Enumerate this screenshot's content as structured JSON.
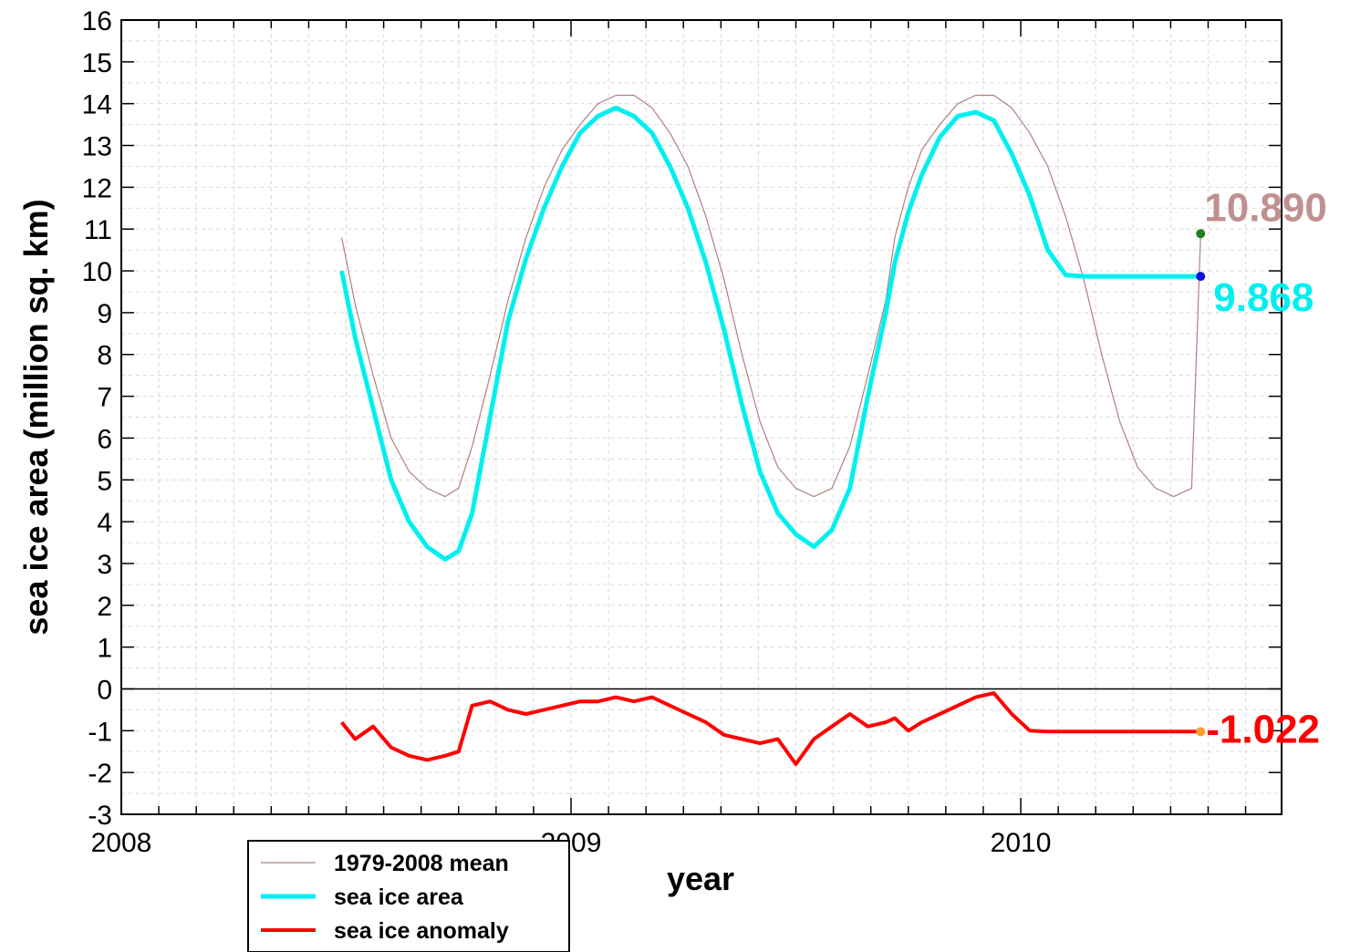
{
  "chart_data": {
    "type": "line",
    "xlabel": "year",
    "ylabel": "sea ice area (million sq. km)",
    "xlim": [
      2008.0,
      2010.58
    ],
    "ylim": [
      -3,
      16
    ],
    "x_ticks": [
      2008,
      2009,
      2010
    ],
    "y_ticks": [
      -3,
      -2,
      -1,
      0,
      1,
      2,
      3,
      4,
      5,
      6,
      7,
      8,
      9,
      10,
      11,
      12,
      13,
      14,
      15,
      16
    ],
    "grid": true,
    "legend_position": "bottom-left",
    "colors": {
      "mean": "#b08080",
      "area": "#00f0f0",
      "anomaly": "#ff0000",
      "mean_end_marker": "#208020",
      "area_end_marker": "#1010e0",
      "anomaly_end_marker": "#ffa030",
      "mean_end_label": "#c09090",
      "area_end_label": "#00f0f0",
      "anomaly_end_label": "#ff0000"
    },
    "series": [
      {
        "name": "1979-2008 mean",
        "x": [
          2008.49,
          2008.52,
          2008.56,
          2008.6,
          2008.64,
          2008.68,
          2008.72,
          2008.75,
          2008.78,
          2008.82,
          2008.86,
          2008.9,
          2008.94,
          2008.98,
          2009.02,
          2009.06,
          2009.1,
          2009.14,
          2009.18,
          2009.22,
          2009.26,
          2009.3,
          2009.34,
          2009.38,
          2009.42,
          2009.46,
          2009.5,
          2009.54,
          2009.58,
          2009.62,
          2009.66,
          2009.7,
          2009.72,
          2009.75,
          2009.78,
          2009.82,
          2009.86,
          2009.9,
          2009.94,
          2009.98,
          2010.02,
          2010.06,
          2010.1,
          2010.14,
          2010.18,
          2010.22,
          2010.26,
          2010.3,
          2010.34,
          2010.38,
          2010.4
        ],
        "values": [
          10.8,
          9.2,
          7.5,
          6.0,
          5.2,
          4.8,
          4.6,
          4.8,
          5.8,
          7.5,
          9.3,
          10.8,
          12.0,
          12.9,
          13.5,
          14.0,
          14.2,
          14.2,
          13.9,
          13.3,
          12.5,
          11.3,
          9.8,
          8.0,
          6.4,
          5.3,
          4.8,
          4.6,
          4.8,
          5.8,
          7.5,
          9.3,
          10.8,
          12.0,
          12.9,
          13.5,
          14.0,
          14.2,
          14.2,
          13.9,
          13.3,
          12.5,
          11.3,
          9.8,
          8.0,
          6.4,
          5.3,
          4.8,
          4.6,
          4.8,
          10.89
        ],
        "end_value": "10.890"
      },
      {
        "name": "sea ice area",
        "x": [
          2008.49,
          2008.52,
          2008.56,
          2008.6,
          2008.64,
          2008.68,
          2008.72,
          2008.75,
          2008.78,
          2008.82,
          2008.86,
          2008.9,
          2008.94,
          2008.98,
          2009.02,
          2009.06,
          2009.1,
          2009.14,
          2009.18,
          2009.22,
          2009.26,
          2009.3,
          2009.34,
          2009.38,
          2009.42,
          2009.46,
          2009.5,
          2009.54,
          2009.58,
          2009.62,
          2009.66,
          2009.7,
          2009.72,
          2009.75,
          2009.78,
          2009.82,
          2009.86,
          2009.9,
          2009.94,
          2009.98,
          2010.02,
          2010.06,
          2010.1,
          2010.14,
          2010.18,
          2010.22,
          2010.26,
          2010.3,
          2010.34,
          2010.38,
          2010.4
        ],
        "values": [
          10.0,
          8.4,
          6.7,
          5.0,
          4.0,
          3.4,
          3.1,
          3.3,
          4.2,
          6.5,
          8.8,
          10.3,
          11.5,
          12.5,
          13.3,
          13.7,
          13.9,
          13.7,
          13.3,
          12.5,
          11.5,
          10.2,
          8.6,
          6.8,
          5.2,
          4.2,
          3.7,
          3.4,
          3.8,
          4.8,
          7.0,
          9.0,
          10.2,
          11.4,
          12.3,
          13.2,
          13.7,
          13.8,
          13.6,
          12.8,
          11.8,
          10.5,
          9.9,
          9.87,
          9.868,
          9.868,
          9.868,
          9.868,
          9.868,
          9.868,
          9.868
        ],
        "end_value": "9.868"
      },
      {
        "name": "sea ice anomaly",
        "x": [
          2008.49,
          2008.52,
          2008.56,
          2008.6,
          2008.64,
          2008.68,
          2008.72,
          2008.75,
          2008.78,
          2008.82,
          2008.86,
          2008.9,
          2008.94,
          2008.98,
          2009.02,
          2009.06,
          2009.1,
          2009.14,
          2009.18,
          2009.22,
          2009.26,
          2009.3,
          2009.34,
          2009.38,
          2009.42,
          2009.46,
          2009.5,
          2009.54,
          2009.58,
          2009.62,
          2009.66,
          2009.7,
          2009.72,
          2009.75,
          2009.78,
          2009.82,
          2009.86,
          2009.9,
          2009.94,
          2009.98,
          2010.02,
          2010.06,
          2010.1,
          2010.14,
          2010.18,
          2010.22,
          2010.26,
          2010.3,
          2010.34,
          2010.38,
          2010.4
        ],
        "values": [
          -0.8,
          -1.2,
          -0.9,
          -1.4,
          -1.6,
          -1.7,
          -1.6,
          -1.5,
          -0.4,
          -0.3,
          -0.5,
          -0.6,
          -0.5,
          -0.4,
          -0.3,
          -0.3,
          -0.2,
          -0.3,
          -0.2,
          -0.4,
          -0.6,
          -0.8,
          -1.1,
          -1.2,
          -1.3,
          -1.2,
          -1.8,
          -1.2,
          -0.9,
          -0.6,
          -0.9,
          -0.8,
          -0.7,
          -1.0,
          -0.8,
          -0.6,
          -0.4,
          -0.2,
          -0.1,
          -0.6,
          -1.0,
          -1.022,
          -1.022,
          -1.022,
          -1.022,
          -1.022,
          -1.022,
          -1.022,
          -1.022,
          -1.022,
          -1.022
        ],
        "end_value": "-1.022"
      }
    ]
  }
}
